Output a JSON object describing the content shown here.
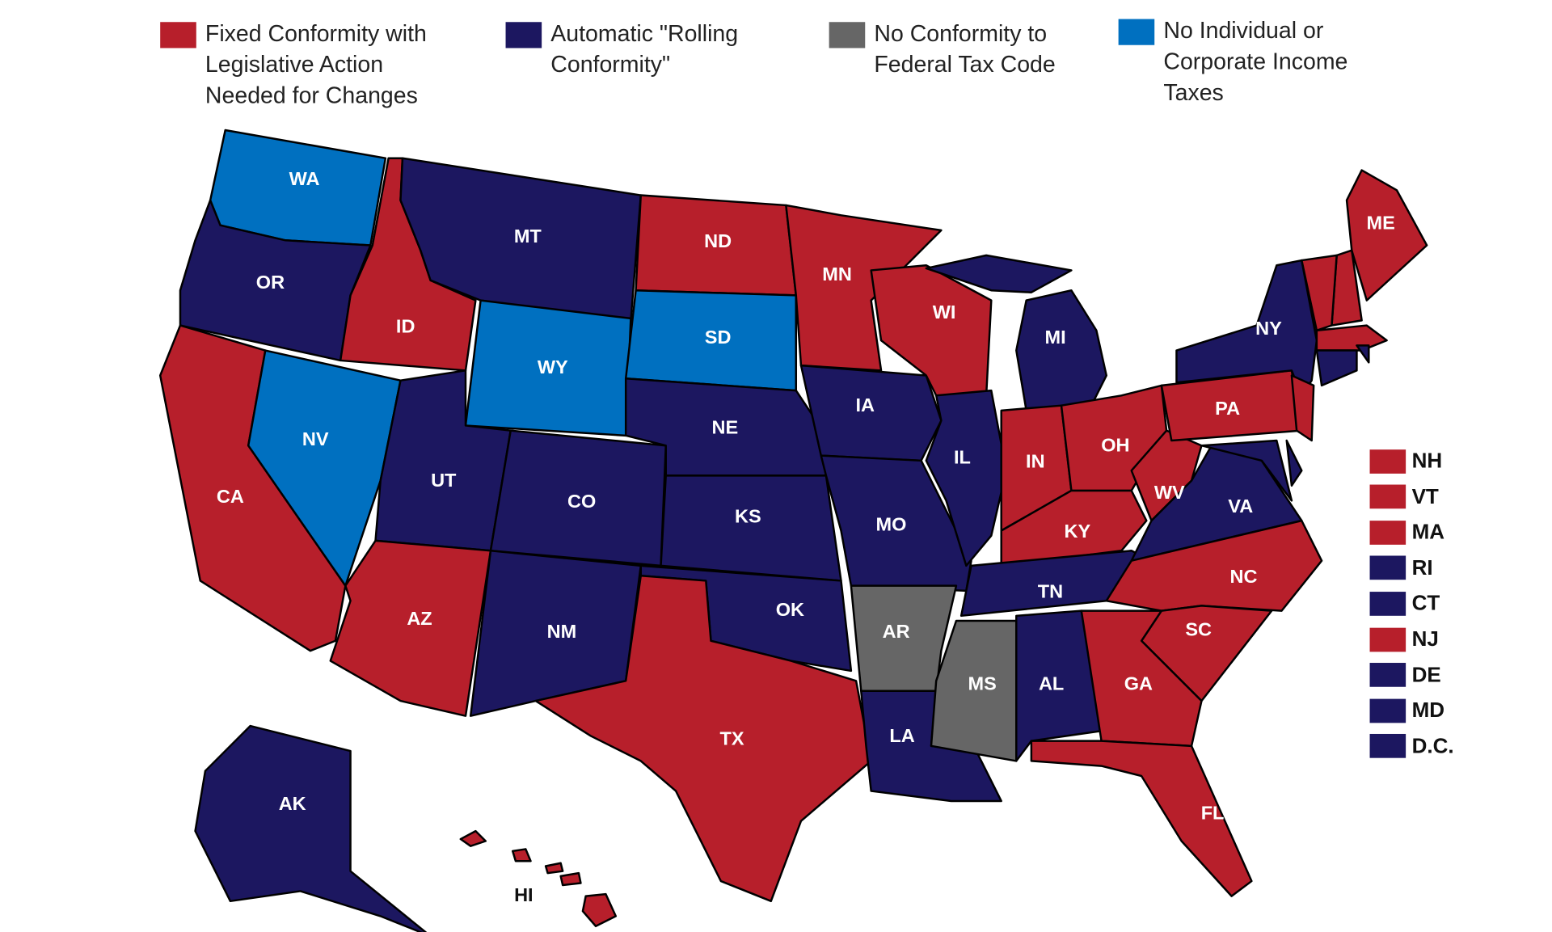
{
  "legend": [
    {
      "label": "Fixed Conformity with Legislative Action Needed for Changes",
      "color": "#b71f2b"
    },
    {
      "label": "Automatic \"Rolling Conformity\"",
      "color": "#1c1760"
    },
    {
      "label": "No Conformity to Federal Tax Code",
      "color": "#666666"
    },
    {
      "label": "No Individual or Corporate Income Taxes",
      "color": "#0070c0"
    }
  ],
  "states": [
    {
      "abbr": "WA",
      "color": "#0070c0"
    },
    {
      "abbr": "OR",
      "color": "#1c1760"
    },
    {
      "abbr": "ID",
      "color": "#b71f2b"
    },
    {
      "abbr": "CA",
      "color": "#b71f2b"
    },
    {
      "abbr": "NV",
      "color": "#0070c0"
    },
    {
      "abbr": "MT",
      "color": "#1c1760"
    },
    {
      "abbr": "WY",
      "color": "#0070c0"
    },
    {
      "abbr": "UT",
      "color": "#1c1760"
    },
    {
      "abbr": "AZ",
      "color": "#b71f2b"
    },
    {
      "abbr": "CO",
      "color": "#1c1760"
    },
    {
      "abbr": "NM",
      "color": "#1c1760"
    },
    {
      "abbr": "ND",
      "color": "#b71f2b"
    },
    {
      "abbr": "SD",
      "color": "#0070c0"
    },
    {
      "abbr": "NE",
      "color": "#1c1760"
    },
    {
      "abbr": "KS",
      "color": "#1c1760"
    },
    {
      "abbr": "OK",
      "color": "#1c1760"
    },
    {
      "abbr": "TX",
      "color": "#b71f2b"
    },
    {
      "abbr": "MN",
      "color": "#b71f2b"
    },
    {
      "abbr": "IA",
      "color": "#1c1760"
    },
    {
      "abbr": "MO",
      "color": "#1c1760"
    },
    {
      "abbr": "AR",
      "color": "#666666"
    },
    {
      "abbr": "LA",
      "color": "#1c1760"
    },
    {
      "abbr": "MS",
      "color": "#666666"
    },
    {
      "abbr": "AL",
      "color": "#1c1760"
    },
    {
      "abbr": "WI",
      "color": "#b71f2b"
    },
    {
      "abbr": "IL",
      "color": "#1c1760"
    },
    {
      "abbr": "MI",
      "color": "#1c1760"
    },
    {
      "abbr": "IN",
      "color": "#b71f2b"
    },
    {
      "abbr": "OH",
      "color": "#b71f2b"
    },
    {
      "abbr": "KY",
      "color": "#b71f2b"
    },
    {
      "abbr": "TN",
      "color": "#1c1760"
    },
    {
      "abbr": "WV",
      "color": "#b71f2b"
    },
    {
      "abbr": "VA",
      "color": "#1c1760"
    },
    {
      "abbr": "NC",
      "color": "#b71f2b"
    },
    {
      "abbr": "SC",
      "color": "#b71f2b"
    },
    {
      "abbr": "GA",
      "color": "#b71f2b"
    },
    {
      "abbr": "FL",
      "color": "#b71f2b"
    },
    {
      "abbr": "PA",
      "color": "#b71f2b"
    },
    {
      "abbr": "NY",
      "color": "#1c1760"
    },
    {
      "abbr": "ME",
      "color": "#b71f2b"
    },
    {
      "abbr": "AK",
      "color": "#1c1760"
    },
    {
      "abbr": "HI",
      "color": "#b71f2b"
    }
  ],
  "small_states": [
    {
      "abbr": "NH",
      "color": "#b71f2b"
    },
    {
      "abbr": "VT",
      "color": "#b71f2b"
    },
    {
      "abbr": "MA",
      "color": "#b71f2b"
    },
    {
      "abbr": "RI",
      "color": "#1c1760"
    },
    {
      "abbr": "CT",
      "color": "#1c1760"
    },
    {
      "abbr": "NJ",
      "color": "#b71f2b"
    },
    {
      "abbr": "DE",
      "color": "#1c1760"
    },
    {
      "abbr": "MD",
      "color": "#1c1760"
    },
    {
      "abbr": "D.C.",
      "color": "#1c1760"
    }
  ]
}
